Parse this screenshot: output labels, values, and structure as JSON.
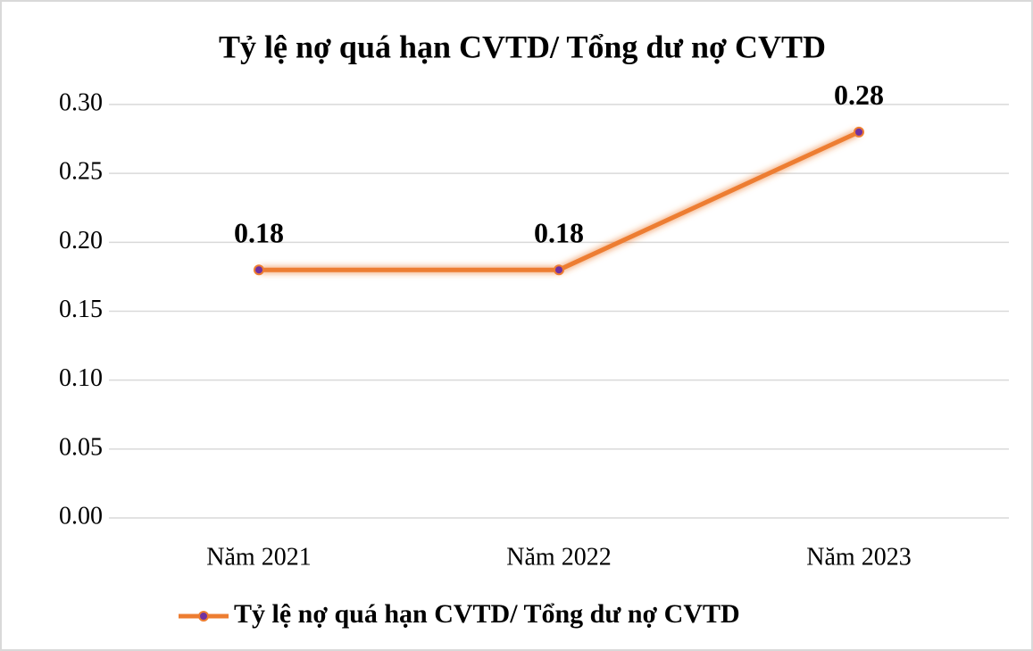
{
  "chart_data": {
    "type": "line",
    "title": "Tỷ lệ nợ quá hạn CVTD/ Tổng dư nợ CVTD",
    "categories": [
      "Năm 2021",
      "Năm 2022",
      "Năm 2023"
    ],
    "series": [
      {
        "name": "Tỷ lệ nợ quá hạn CVTD/ Tổng dư nợ CVTD",
        "color": "#ed7d31",
        "marker_color": "#7030a0",
        "values": [
          0.18,
          0.18,
          0.28
        ]
      }
    ],
    "ylim": [
      0,
      0.3
    ],
    "yticks": [
      {
        "value": 0,
        "label": "0.00"
      },
      {
        "value": 0.05,
        "label": "0.05"
      },
      {
        "value": 0.1,
        "label": "0.10"
      },
      {
        "value": 0.15,
        "label": "0.15"
      },
      {
        "value": 0.2,
        "label": "0.20"
      },
      {
        "value": 0.25,
        "label": "0.25"
      },
      {
        "value": 0.3,
        "label": "0.30"
      }
    ],
    "grid": true,
    "legend": "bottom"
  }
}
